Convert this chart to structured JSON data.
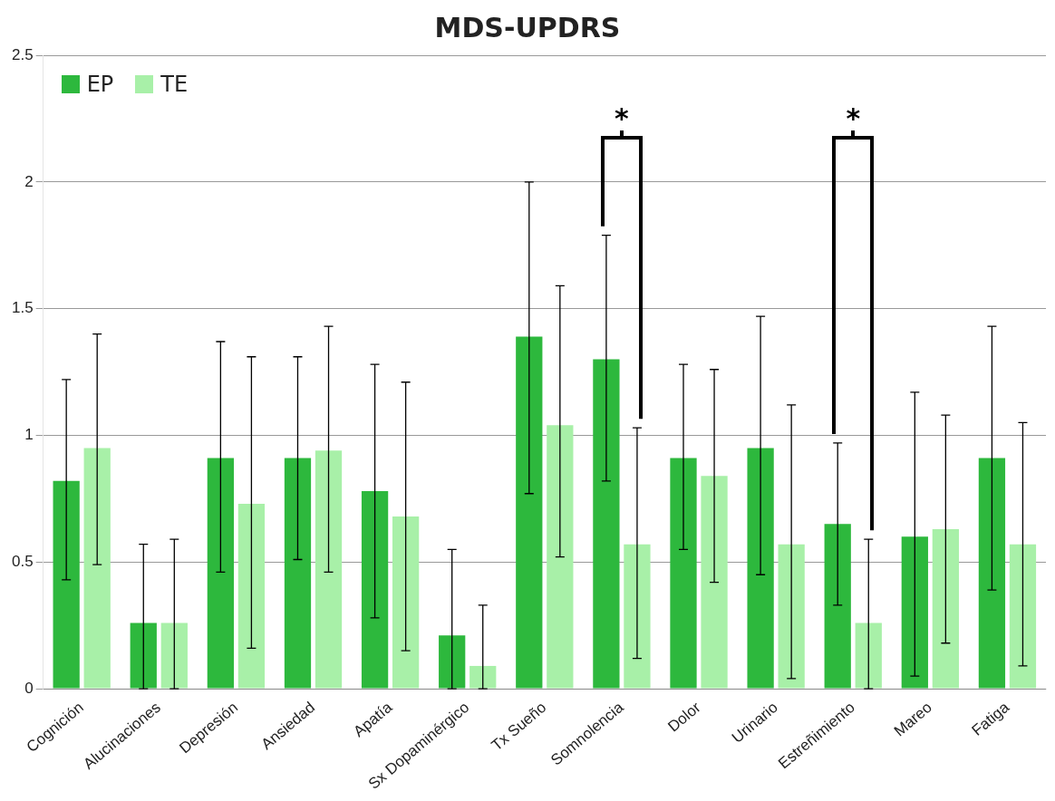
{
  "chart_data": {
    "type": "bar",
    "title": "MDS-UPDRS",
    "categories": [
      "Cognición",
      "Alucinaciones",
      "Depresión",
      "Ansiedad",
      "Apatía",
      "Sx Dopaminérgico",
      "Tx Sueño",
      "Somnolencia",
      "Dolor",
      "Urinario",
      "Estreñimiento",
      "Mareo",
      "Fatiga"
    ],
    "series": [
      {
        "name": "EP",
        "color": "#2db83d",
        "values": [
          0.82,
          0.26,
          0.91,
          0.91,
          0.78,
          0.21,
          1.39,
          1.3,
          0.91,
          0.95,
          0.65,
          0.6,
          0.91
        ],
        "errors": [
          [
            0.43,
            1.22
          ],
          [
            0,
            0.57
          ],
          [
            0.46,
            1.37
          ],
          [
            0.51,
            1.31
          ],
          [
            0.28,
            1.28
          ],
          [
            0,
            0.55
          ],
          [
            0.77,
            2.0
          ],
          [
            0.82,
            1.79
          ],
          [
            0.55,
            1.28
          ],
          [
            0.45,
            1.47
          ],
          [
            0.33,
            0.97
          ],
          [
            0.05,
            1.17
          ],
          [
            0.39,
            1.43
          ]
        ]
      },
      {
        "name": "TE",
        "color": "#a8f0a8",
        "values": [
          0.95,
          0.26,
          0.73,
          0.94,
          0.68,
          0.09,
          1.04,
          0.57,
          0.84,
          0.57,
          0.26,
          0.63,
          0.57
        ],
        "errors": [
          [
            0.49,
            1.4
          ],
          [
            0,
            0.59
          ],
          [
            0.16,
            1.31
          ],
          [
            0.46,
            1.43
          ],
          [
            0.15,
            1.21
          ],
          [
            0,
            0.33
          ],
          [
            0.52,
            1.59
          ],
          [
            0.12,
            1.03
          ],
          [
            0.42,
            1.26
          ],
          [
            0.04,
            1.12
          ],
          [
            0,
            0.59
          ],
          [
            0.18,
            1.08
          ],
          [
            0.09,
            1.05
          ]
        ]
      }
    ],
    "ylim": [
      0,
      2.5
    ],
    "yticks": [
      0,
      0.5,
      1,
      1.5,
      2,
      2.5
    ],
    "grid": "y",
    "legend": "top left",
    "annotations": [
      "*",
      "*"
    ]
  }
}
